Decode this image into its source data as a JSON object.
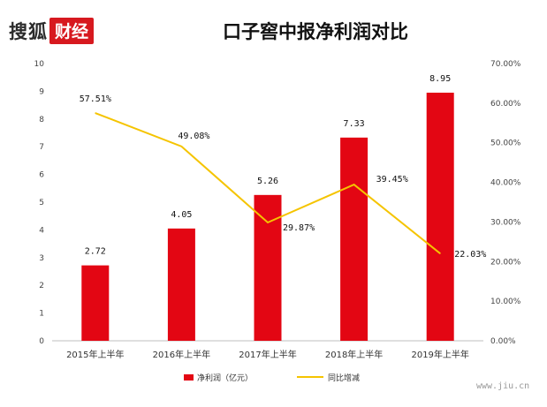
{
  "header": {
    "logo_dark": "搜狐",
    "logo_red": "财经",
    "title": "口子窖中报净利润对比"
  },
  "watermark": "www.jiu.cn",
  "colors": {
    "bar": "#e30613",
    "line": "#f5c400",
    "axis": "#bfbfbf"
  },
  "chart_data": {
    "type": "bar",
    "title": "口子窖中报净利润对比",
    "categories": [
      "2015年上半年",
      "2016年上半年",
      "2017年上半年",
      "2018年上半年",
      "2019年上半年"
    ],
    "series": [
      {
        "name": "净利润（亿元）",
        "type": "bar",
        "axis": "left",
        "values": [
          2.72,
          4.05,
          5.26,
          7.33,
          8.95
        ],
        "labels": [
          "2.72",
          "4.05",
          "5.26",
          "7.33",
          "8.95"
        ]
      },
      {
        "name": "同比增减",
        "type": "line",
        "axis": "right",
        "values": [
          57.51,
          49.08,
          29.87,
          39.45,
          22.03
        ],
        "labels": [
          "57.51%",
          "49.08%",
          "29.87%",
          "39.45%",
          "22.03%"
        ]
      }
    ],
    "y_left": {
      "min": 0,
      "max": 10,
      "ticks": [
        "0",
        "1",
        "2",
        "3",
        "4",
        "5",
        "6",
        "7",
        "8",
        "9",
        "10"
      ]
    },
    "y_right": {
      "min": 0,
      "max": 70,
      "ticks": [
        "0.00%",
        "10.00%",
        "20.00%",
        "30.00%",
        "40.00%",
        "50.00%",
        "60.00%",
        "70.00%"
      ]
    },
    "legend_position": "bottom",
    "grid": false
  }
}
